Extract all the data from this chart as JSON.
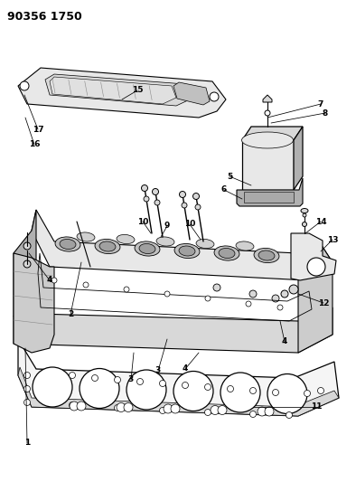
{
  "title": "90356 1750",
  "bg_color": "#ffffff",
  "fg_color": "#000000",
  "figsize": [
    3.94,
    5.33
  ],
  "dpi": 100,
  "valve_cover": {
    "color": "#f2f2f2",
    "inner_color": "#e0e0e0",
    "dark_color": "#b0b0b0"
  },
  "cylinder_head": {
    "top_color": "#e8e8e8",
    "side_color": "#cccccc",
    "front_color": "#d8d8d8"
  },
  "gasket_color": "#f0f0f0",
  "label_color": "#000000",
  "line_color": "#000000"
}
